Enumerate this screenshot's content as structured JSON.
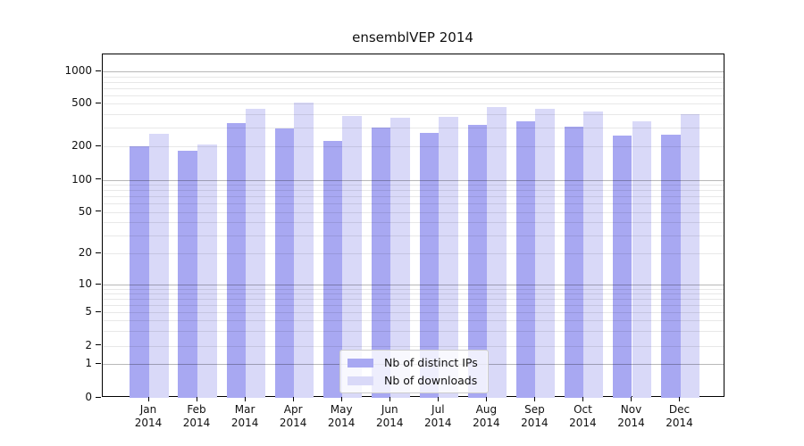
{
  "title": "ensemblVEP 2014",
  "chart_data": {
    "type": "bar",
    "title": "ensemblVEP 2014",
    "categories": [
      "Jan",
      "Feb",
      "Mar",
      "Apr",
      "May",
      "Jun",
      "Jul",
      "Aug",
      "Sep",
      "Oct",
      "Nov",
      "Dec"
    ],
    "category_year": "2014",
    "series": [
      {
        "name": "Nb of distinct IPs",
        "color": "#a8a8f2",
        "values": [
          203,
          182,
          331,
          295,
          225,
          302,
          267,
          320,
          345,
          308,
          255,
          257
        ]
      },
      {
        "name": "Nb of downloads",
        "color": "#d9d9f8",
        "values": [
          264,
          211,
          450,
          510,
          385,
          373,
          378,
          470,
          450,
          422,
          345,
          397
        ]
      }
    ],
    "y_axis": {
      "scale": "log",
      "tick_labels": [
        0,
        1,
        2,
        5,
        10,
        20,
        50,
        100,
        200,
        500,
        1000
      ],
      "major_decades": [
        1,
        10,
        100,
        1000
      ],
      "range": [
        0,
        1450
      ]
    },
    "xlabel": "",
    "ylabel": "",
    "grid": "on",
    "legend": {
      "position": "lower-center",
      "entries": [
        "Nb of distinct IPs",
        "Nb of downloads"
      ]
    }
  },
  "colors": {
    "background": "#ffffff",
    "axis": "#000000",
    "bar_distinct_ips": "#a8a8f2",
    "bar_downloads": "#d9d9f8",
    "major_grid": "rgba(0,0,0,0.28)",
    "minor_grid": "rgba(0,0,0,0.09)"
  }
}
